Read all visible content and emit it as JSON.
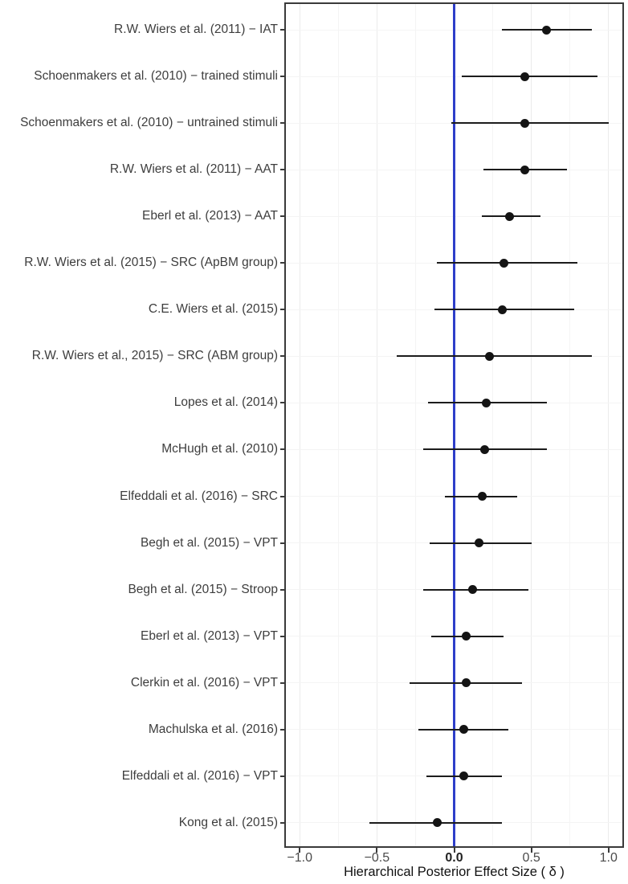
{
  "chart_data": {
    "type": "scatter",
    "subtype": "forest-plot",
    "title": "",
    "xlabel": "Hierarchical Posterior Effect Size ( δ )",
    "ylabel": "",
    "xlim": [
      -1.1,
      1.1
    ],
    "grid": true,
    "legend": false,
    "zero_line_x": 0.0,
    "gridline_step": 0.25,
    "x_ticks": [
      {
        "value": -1.0,
        "label": "−1.0",
        "bold": false
      },
      {
        "value": -0.5,
        "label": "−0.5",
        "bold": false
      },
      {
        "value": 0.0,
        "label": "0.0",
        "bold": true
      },
      {
        "value": 0.5,
        "label": "0.5",
        "bold": false
      },
      {
        "value": 1.0,
        "label": "1.0",
        "bold": false
      }
    ],
    "studies": [
      {
        "label": "R.W. Wiers et al. (2011) − IAT",
        "mean": 0.6,
        "ci_lower": 0.31,
        "ci_upper": 0.89
      },
      {
        "label": "Schoenmakers et al. (2010) − trained stimuli",
        "mean": 0.46,
        "ci_lower": 0.05,
        "ci_upper": 0.93
      },
      {
        "label": "Schoenmakers et al. (2010) − untrained stimuli",
        "mean": 0.46,
        "ci_lower": -0.02,
        "ci_upper": 1.0
      },
      {
        "label": "R.W. Wiers et al. (2011) − AAT",
        "mean": 0.46,
        "ci_lower": 0.19,
        "ci_upper": 0.73
      },
      {
        "label": "Eberl et al. (2013) − AAT",
        "mean": 0.36,
        "ci_lower": 0.18,
        "ci_upper": 0.56
      },
      {
        "label": "R.W. Wiers et al. (2015) − SRC (ApBM group)",
        "mean": 0.32,
        "ci_lower": -0.11,
        "ci_upper": 0.8
      },
      {
        "label": "C.E. Wiers et al. (2015)",
        "mean": 0.31,
        "ci_lower": -0.13,
        "ci_upper": 0.78
      },
      {
        "label": "R.W. Wiers et al., 2015) − SRC (ABM group)",
        "mean": 0.23,
        "ci_lower": -0.37,
        "ci_upper": 0.89
      },
      {
        "label": "Lopes et al. (2014)",
        "mean": 0.21,
        "ci_lower": -0.17,
        "ci_upper": 0.6
      },
      {
        "label": "McHugh et al. (2010)",
        "mean": 0.2,
        "ci_lower": -0.2,
        "ci_upper": 0.6
      },
      {
        "label": "Elfeddali et al. (2016) − SRC",
        "mean": 0.18,
        "ci_lower": -0.06,
        "ci_upper": 0.41
      },
      {
        "label": "Begh et al. (2015) − VPT",
        "mean": 0.16,
        "ci_lower": -0.16,
        "ci_upper": 0.5
      },
      {
        "label": "Begh et al. (2015) − Stroop",
        "mean": 0.12,
        "ci_lower": -0.2,
        "ci_upper": 0.48
      },
      {
        "label": "Eberl et al. (2013) − VPT",
        "mean": 0.08,
        "ci_lower": -0.15,
        "ci_upper": 0.32
      },
      {
        "label": "Clerkin et al. (2016) − VPT",
        "mean": 0.08,
        "ci_lower": -0.29,
        "ci_upper": 0.44
      },
      {
        "label": "Machulska et al. (2016)",
        "mean": 0.06,
        "ci_lower": -0.23,
        "ci_upper": 0.35
      },
      {
        "label": "Elfeddali et al. (2016) − VPT",
        "mean": 0.06,
        "ci_lower": -0.18,
        "ci_upper": 0.31
      },
      {
        "label": "Kong et al. (2015)",
        "mean": -0.11,
        "ci_lower": -0.55,
        "ci_upper": 0.31
      }
    ]
  },
  "colors": {
    "zero_line": "#2e3ec9",
    "point": "#141414",
    "error_bar": "#1c1c1c",
    "panel_border": "#3a3a3a",
    "grid_major": "#ebebeb",
    "grid_minor": "#f4f4f4",
    "axis_text": "#4a4a4a",
    "label_text": "#3d3d3d",
    "title_text": "#111111"
  }
}
